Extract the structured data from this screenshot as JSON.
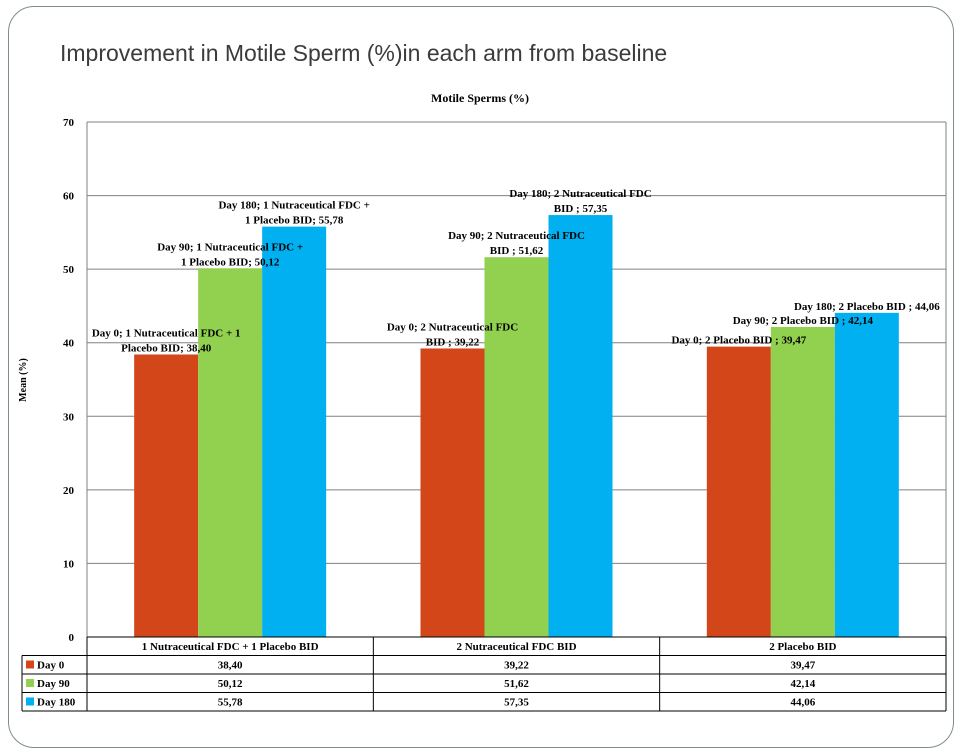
{
  "page_title": "Improvement in Motile Sperm (%)in each arm from baseline",
  "chart_data": {
    "type": "bar",
    "title": "Motile Sperms  (%)",
    "xlabel": "",
    "ylabel": "Mean  (%)",
    "ylim": [
      0,
      70
    ],
    "yticks": [
      0,
      10,
      20,
      30,
      40,
      50,
      60,
      70
    ],
    "grid": true,
    "legend": "data-table",
    "categories": [
      "1 Nutraceutical FDC + 1 Placebo BID",
      "2 Nutraceutical FDC BID",
      "2 Placebo BID"
    ],
    "series": [
      {
        "name": "Day 0",
        "color": "#d2461a",
        "values": [
          38.4,
          39.22,
          39.47
        ],
        "value_text": [
          "38,40",
          "39,22",
          "39,47"
        ],
        "labels": [
          [
            "Day 0; 1 Nutraceutical FDC + 1",
            "Placebo BID; 38,40"
          ],
          [
            "Day 0; 2 Nutraceutical FDC",
            "BID ; 39,22"
          ],
          [
            "Day 0; 2 Placebo BID ; 39,47"
          ]
        ]
      },
      {
        "name": "Day 90",
        "color": "#92d050",
        "values": [
          50.12,
          51.62,
          42.14
        ],
        "value_text": [
          "50,12",
          "51,62",
          "42,14"
        ],
        "labels": [
          [
            "Day 90; 1 Nutraceutical FDC +",
            "1 Placebo BID; 50,12"
          ],
          [
            "Day 90; 2 Nutraceutical FDC",
            "BID ; 51,62"
          ],
          [
            "Day 90; 2 Placebo BID ; 42,14"
          ]
        ]
      },
      {
        "name": "Day 180",
        "color": "#00b0f0",
        "values": [
          55.78,
          57.35,
          44.06
        ],
        "value_text": [
          "55,78",
          "57,35",
          "44,06"
        ],
        "labels": [
          [
            "Day 180; 1 Nutraceutical FDC +",
            "1 Placebo BID; 55,78"
          ],
          [
            "Day 180; 2 Nutraceutical FDC",
            "BID ; 57,35"
          ],
          [
            "Day 180; 2 Placebo BID ; 44,06"
          ]
        ]
      }
    ]
  }
}
